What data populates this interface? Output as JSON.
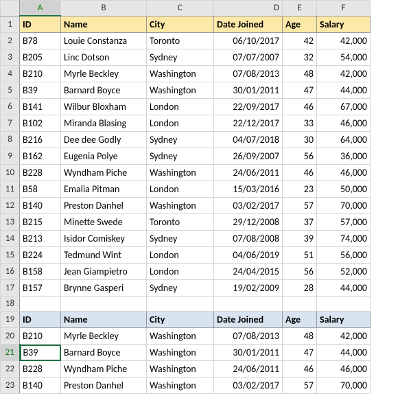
{
  "columns": [
    "A",
    "B",
    "C",
    "D",
    "E",
    "F"
  ],
  "rowCount": 23,
  "activeCell": {
    "row": 21,
    "col": "A"
  },
  "header1Row": 1,
  "header2Row": 19,
  "emptyRows": [
    18
  ],
  "header1": {
    "bg": "#fce9a8",
    "labels": [
      "ID",
      "Name",
      "City",
      "Date Joined",
      "Age",
      "Salary"
    ]
  },
  "header2": {
    "bg": "#d8e4f0",
    "labels": [
      "ID",
      "Name",
      "City",
      "Date Joined",
      "Age",
      "Salary"
    ]
  },
  "data1": [
    [
      "B78",
      "Louie Constanza",
      "Toronto",
      "06/10/2017",
      "42",
      "42,000"
    ],
    [
      "B205",
      "Linc Dotson",
      "Sydney",
      "07/07/2007",
      "32",
      "54,000"
    ],
    [
      "B210",
      "Myrle Beckley",
      "Washington",
      "07/08/2013",
      "48",
      "42,000"
    ],
    [
      "B39",
      "Barnard Boyce",
      "Washington",
      "30/01/2011",
      "47",
      "44,000"
    ],
    [
      "B141",
      "Wilbur Bloxham",
      "London",
      "22/09/2017",
      "46",
      "67,000"
    ],
    [
      "B102",
      "Miranda Blasing",
      "London",
      "22/12/2017",
      "33",
      "46,000"
    ],
    [
      "B216",
      "Dee dee Godly",
      "Sydney",
      "04/07/2018",
      "30",
      "64,000"
    ],
    [
      "B162",
      "Eugenia Polye",
      "Sydney",
      "26/09/2007",
      "56",
      "36,000"
    ],
    [
      "B228",
      "Wyndham Piche",
      "Washington",
      "24/06/2011",
      "46",
      "46,000"
    ],
    [
      "B58",
      "Emalia Pitman",
      "London",
      "15/03/2016",
      "23",
      "50,000"
    ],
    [
      "B140",
      "Preston Danhel",
      "Washington",
      "03/02/2017",
      "57",
      "70,000"
    ],
    [
      "B215",
      "Minette Swede",
      "Toronto",
      "29/12/2008",
      "37",
      "57,000"
    ],
    [
      "B213",
      "Isidor Comiskey",
      "Sydney",
      "07/08/2008",
      "39",
      "74,000"
    ],
    [
      "B224",
      "Tedmund Wint",
      "London",
      "04/06/2019",
      "51",
      "56,000"
    ],
    [
      "B158",
      "Jean Giampietro",
      "London",
      "24/04/2015",
      "56",
      "52,000"
    ],
    [
      "B157",
      "Brynne Gasperi",
      "Sydney",
      "19/02/2009",
      "28",
      "44,000"
    ]
  ],
  "data2": [
    [
      "B210",
      "Myrle Beckley",
      "Washington",
      "07/08/2013",
      "48",
      "42,000"
    ],
    [
      "B39",
      "Barnard Boyce",
      "Washington",
      "30/01/2011",
      "47",
      "44,000"
    ],
    [
      "B228",
      "Wyndham Piche",
      "Washington",
      "24/06/2011",
      "46",
      "46,000"
    ],
    [
      "B140",
      "Preston Danhel",
      "Washington",
      "03/02/2017",
      "57",
      "70,000"
    ]
  ],
  "numericCols": [
    "D",
    "E",
    "F"
  ],
  "colWidths": {
    "A": 60,
    "B": 125,
    "C": 98,
    "D": 100,
    "E": 50,
    "F": 78
  }
}
